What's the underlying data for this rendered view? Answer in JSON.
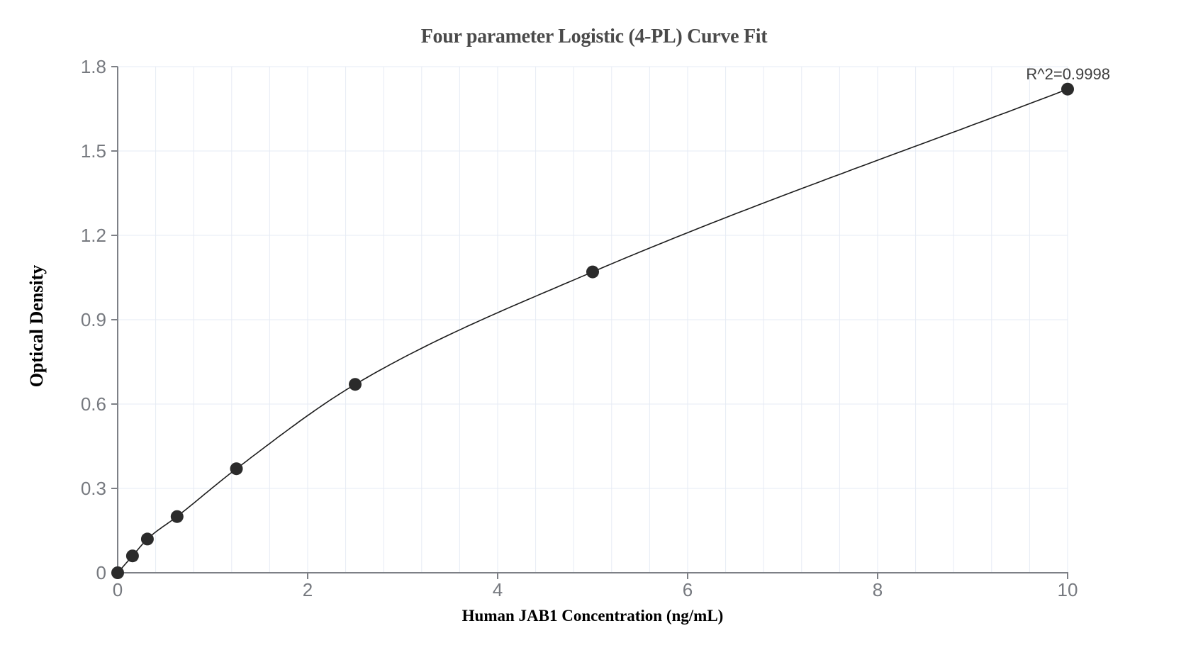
{
  "chart_data": {
    "type": "scatter",
    "title": "Four parameter Logistic (4-PL) Curve Fit",
    "xlabel": "Human JAB1 Concentration (ng/mL)",
    "ylabel": "Optical Density",
    "annotation": "R^2=0.9998",
    "fit": "4-parameter logistic curve through all points",
    "x": [
      0,
      0.156,
      0.313,
      0.625,
      1.25,
      2.5,
      5,
      10
    ],
    "y": [
      0,
      0.06,
      0.12,
      0.2,
      0.37,
      0.67,
      1.07,
      1.72
    ],
    "xlim": [
      0,
      10
    ],
    "ylim": [
      0,
      1.8
    ],
    "x_ticks": [
      0,
      2,
      4,
      6,
      8,
      10
    ],
    "x_tick_labels": [
      "0",
      "2",
      "4",
      "6",
      "8",
      "10"
    ],
    "y_ticks": [
      0,
      0.3,
      0.6,
      0.9,
      1.2,
      1.5,
      1.8
    ],
    "y_tick_labels": [
      "0",
      "0.3",
      "0.6",
      "0.9",
      "1.2",
      "1.5",
      "1.8"
    ],
    "x_minor_grid_step": 0.4,
    "grid": "on",
    "legend": "none",
    "colors": {
      "background": "#ffffff",
      "grid": "#e6ebf4",
      "axis": "#7d8086",
      "tick_label": "#76797f",
      "title": "#4a4a4a",
      "axis_label": "#000000",
      "annotation": "#3d3d3d",
      "point": "#2b2b2b",
      "curve": "#1c1c1c"
    }
  }
}
